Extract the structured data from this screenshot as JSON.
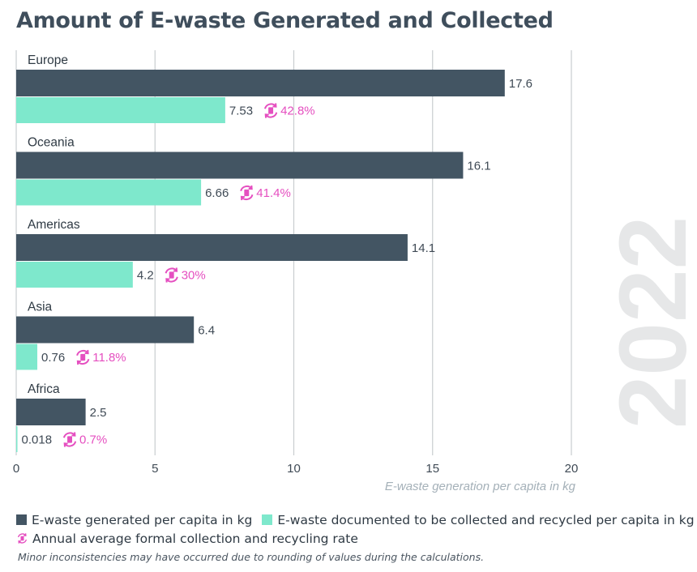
{
  "title": "Amount of E-waste Generated and Collected",
  "year_watermark": "2022",
  "note": "Minor inconsistencies may have occurred due to rounding of values during the calculations.",
  "colors": {
    "generated": "#435563",
    "collected": "#7ee8cc",
    "rate": "#e54fc0",
    "grid": "#c9cdd0",
    "watermark": "#e6e7e8",
    "text": "#3f4a55"
  },
  "legend": {
    "generated_label": "E-waste generated per capita in kg",
    "collected_label": "E-waste documented to be collected and recycled per capita in kg",
    "rate_label": "Annual average formal collection and recycling rate"
  },
  "chart_data": {
    "type": "bar",
    "orientation": "horizontal",
    "title": "Amount of E-waste Generated and Collected",
    "xlabel": "E-waste generation per capita in kg",
    "ylabel": "",
    "xlim": [
      0,
      20
    ],
    "xticks": [
      0,
      5,
      10,
      15,
      20
    ],
    "grid": true,
    "categories": [
      "Europe",
      "Oceania",
      "Americas",
      "Asia",
      "Africa"
    ],
    "series": [
      {
        "name": "E-waste generated per capita in kg",
        "values": [
          17.6,
          16.1,
          14.1,
          6.4,
          2.5
        ],
        "labels": [
          "17.6",
          "16.1",
          "14.1",
          "6.4",
          "2.5"
        ]
      },
      {
        "name": "E-waste documented to be collected and recycled per capita in kg",
        "values": [
          7.53,
          6.66,
          4.2,
          0.76,
          0.018
        ],
        "labels": [
          "7.53",
          "6.66",
          "4.2",
          "0.76",
          "0.018"
        ]
      }
    ],
    "rates": [
      "42.8%",
      "41.4%",
      "30%",
      "11.8%",
      "0.7%"
    ]
  }
}
